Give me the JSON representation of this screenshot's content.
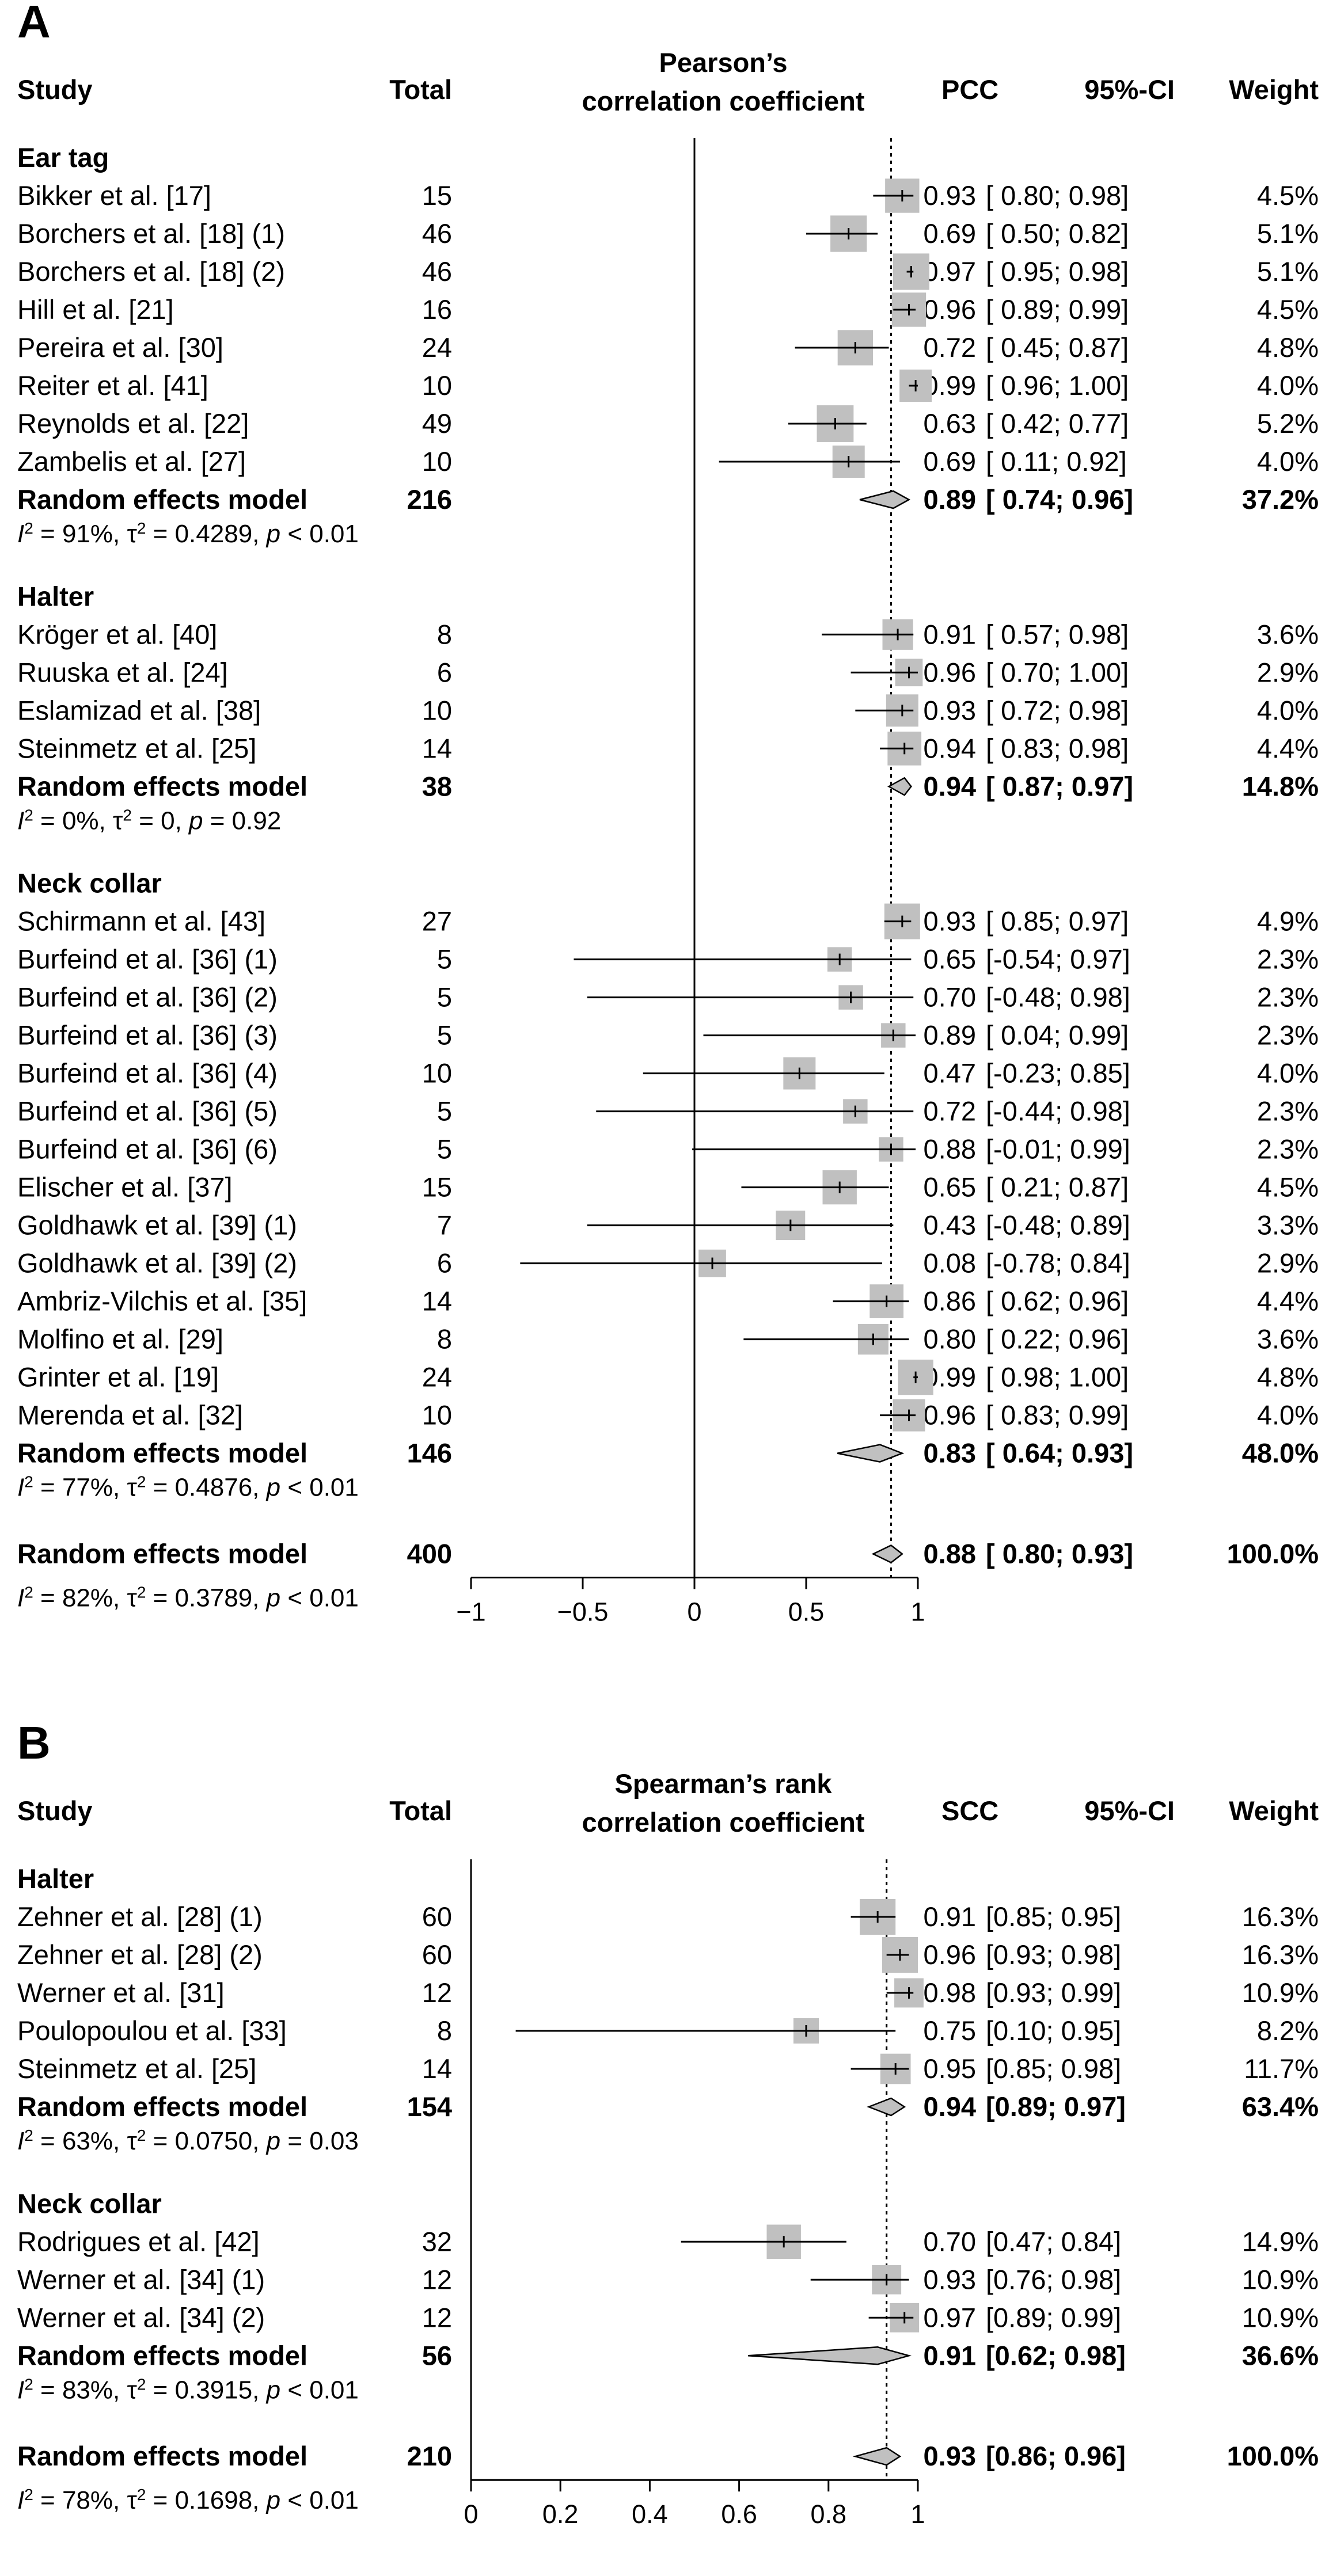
{
  "chart_data": [
    {
      "type": "forest",
      "panel_label": "A",
      "headers": {
        "study": "Study",
        "total": "Total",
        "plot_title_line1": "Pearson’s",
        "plot_title_line2": "correlation coefficient",
        "estimate": "PCC",
        "ci": "95%-CI",
        "weight": "Weight"
      },
      "xlim": [
        -1,
        1
      ],
      "xticks": [
        -1,
        -0.5,
        0,
        0.5,
        1
      ],
      "xtick_labels": [
        "−1",
        "−0.5",
        "0",
        "0.5",
        "1"
      ],
      "zero_line": 0,
      "overall_line": 0.88,
      "groups": [
        {
          "name": "Ear tag",
          "studies": [
            {
              "study": "Bikker et al. [17]",
              "total": "15",
              "est": 0.93,
              "lo": 0.8,
              "hi": 0.98,
              "est_text": "0.93",
              "ci_text": "[ 0.80; 0.98]",
              "weight": "4.5%",
              "w": 4.5
            },
            {
              "study": "Borchers et al. [18] (1)",
              "total": "46",
              "est": 0.69,
              "lo": 0.5,
              "hi": 0.82,
              "est_text": "0.69",
              "ci_text": "[ 0.50; 0.82]",
              "weight": "5.1%",
              "w": 5.1
            },
            {
              "study": "Borchers et al. [18] (2)",
              "total": "46",
              "est": 0.97,
              "lo": 0.95,
              "hi": 0.98,
              "est_text": "0.97",
              "ci_text": "[ 0.95; 0.98]",
              "weight": "5.1%",
              "w": 5.1
            },
            {
              "study": "Hill et al. [21]",
              "total": "16",
              "est": 0.96,
              "lo": 0.89,
              "hi": 0.99,
              "est_text": "0.96",
              "ci_text": "[ 0.89; 0.99]",
              "weight": "4.5%",
              "w": 4.5
            },
            {
              "study": "Pereira et al. [30]",
              "total": "24",
              "est": 0.72,
              "lo": 0.45,
              "hi": 0.87,
              "est_text": "0.72",
              "ci_text": "[ 0.45; 0.87]",
              "weight": "4.8%",
              "w": 4.8
            },
            {
              "study": "Reiter et al. [41]",
              "total": "10",
              "est": 0.99,
              "lo": 0.96,
              "hi": 1.0,
              "est_text": "0.99",
              "ci_text": "[ 0.96; 1.00]",
              "weight": "4.0%",
              "w": 4.0
            },
            {
              "study": "Reynolds et al. [22]",
              "total": "49",
              "est": 0.63,
              "lo": 0.42,
              "hi": 0.77,
              "est_text": "0.63",
              "ci_text": "[ 0.42; 0.77]",
              "weight": "5.2%",
              "w": 5.2
            },
            {
              "study": "Zambelis et al. [27]",
              "total": "10",
              "est": 0.69,
              "lo": 0.11,
              "hi": 0.92,
              "est_text": "0.69",
              "ci_text": "[ 0.11; 0.92]",
              "weight": "4.0%",
              "w": 4.0
            }
          ],
          "summary": {
            "label": "Random effects model",
            "total": "216",
            "est": 0.89,
            "lo": 0.74,
            "hi": 0.96,
            "est_text": "0.89",
            "ci_text": "[ 0.74; 0.96]",
            "weight": "37.2%"
          },
          "heterogeneity": {
            "i2": "91%",
            "tau2": "0.4289",
            "p": "< 0.01"
          }
        },
        {
          "name": "Halter",
          "studies": [
            {
              "study": "Kröger et al. [40]",
              "total": "8",
              "est": 0.91,
              "lo": 0.57,
              "hi": 0.98,
              "est_text": "0.91",
              "ci_text": "[ 0.57; 0.98]",
              "weight": "3.6%",
              "w": 3.6
            },
            {
              "study": "Ruuska et al. [24]",
              "total": "6",
              "est": 0.96,
              "lo": 0.7,
              "hi": 1.0,
              "est_text": "0.96",
              "ci_text": "[ 0.70; 1.00]",
              "weight": "2.9%",
              "w": 2.9
            },
            {
              "study": "Eslamizad et al. [38]",
              "total": "10",
              "est": 0.93,
              "lo": 0.72,
              "hi": 0.98,
              "est_text": "0.93",
              "ci_text": "[ 0.72; 0.98]",
              "weight": "4.0%",
              "w": 4.0
            },
            {
              "study": "Steinmetz et al. [25]",
              "total": "14",
              "est": 0.94,
              "lo": 0.83,
              "hi": 0.98,
              "est_text": "0.94",
              "ci_text": "[ 0.83; 0.98]",
              "weight": "4.4%",
              "w": 4.4
            }
          ],
          "summary": {
            "label": "Random effects model",
            "total": "38",
            "est": 0.94,
            "lo": 0.87,
            "hi": 0.97,
            "est_text": "0.94",
            "ci_text": "[ 0.87; 0.97]",
            "weight": "14.8%"
          },
          "heterogeneity": {
            "i2": "0%",
            "tau2": "0",
            "p": "= 0.92"
          }
        },
        {
          "name": "Neck collar",
          "studies": [
            {
              "study": "Schirmann et al. [43]",
              "total": "27",
              "est": 0.93,
              "lo": 0.85,
              "hi": 0.97,
              "est_text": "0.93",
              "ci_text": "[ 0.85; 0.97]",
              "weight": "4.9%",
              "w": 4.9
            },
            {
              "study": "Burfeind et al. [36] (1)",
              "total": "5",
              "est": 0.65,
              "lo": -0.54,
              "hi": 0.97,
              "est_text": "0.65",
              "ci_text": "[-0.54; 0.97]",
              "weight": "2.3%",
              "w": 2.3
            },
            {
              "study": "Burfeind et al. [36] (2)",
              "total": "5",
              "est": 0.7,
              "lo": -0.48,
              "hi": 0.98,
              "est_text": "0.70",
              "ci_text": "[-0.48; 0.98]",
              "weight": "2.3%",
              "w": 2.3
            },
            {
              "study": "Burfeind et al. [36] (3)",
              "total": "5",
              "est": 0.89,
              "lo": 0.04,
              "hi": 0.99,
              "est_text": "0.89",
              "ci_text": "[ 0.04; 0.99]",
              "weight": "2.3%",
              "w": 2.3
            },
            {
              "study": "Burfeind et al. [36] (4)",
              "total": "10",
              "est": 0.47,
              "lo": -0.23,
              "hi": 0.85,
              "est_text": "0.47",
              "ci_text": "[-0.23; 0.85]",
              "weight": "4.0%",
              "w": 4.0
            },
            {
              "study": "Burfeind et al. [36] (5)",
              "total": "5",
              "est": 0.72,
              "lo": -0.44,
              "hi": 0.98,
              "est_text": "0.72",
              "ci_text": "[-0.44; 0.98]",
              "weight": "2.3%",
              "w": 2.3
            },
            {
              "study": "Burfeind et al. [36] (6)",
              "total": "5",
              "est": 0.88,
              "lo": -0.01,
              "hi": 0.99,
              "est_text": "0.88",
              "ci_text": "[-0.01; 0.99]",
              "weight": "2.3%",
              "w": 2.3
            },
            {
              "study": "Elischer et al. [37]",
              "total": "15",
              "est": 0.65,
              "lo": 0.21,
              "hi": 0.87,
              "est_text": "0.65",
              "ci_text": "[ 0.21; 0.87]",
              "weight": "4.5%",
              "w": 4.5
            },
            {
              "study": "Goldhawk et al. [39] (1)",
              "total": "7",
              "est": 0.43,
              "lo": -0.48,
              "hi": 0.89,
              "est_text": "0.43",
              "ci_text": "[-0.48; 0.89]",
              "weight": "3.3%",
              "w": 3.3
            },
            {
              "study": "Goldhawk et al. [39] (2)",
              "total": "6",
              "est": 0.08,
              "lo": -0.78,
              "hi": 0.84,
              "est_text": "0.08",
              "ci_text": "[-0.78; 0.84]",
              "weight": "2.9%",
              "w": 2.9
            },
            {
              "study": "Ambriz-Vilchis et al. [35]",
              "total": "14",
              "est": 0.86,
              "lo": 0.62,
              "hi": 0.96,
              "est_text": "0.86",
              "ci_text": "[ 0.62; 0.96]",
              "weight": "4.4%",
              "w": 4.4
            },
            {
              "study": "Molfino et al. [29]",
              "total": "8",
              "est": 0.8,
              "lo": 0.22,
              "hi": 0.96,
              "est_text": "0.80",
              "ci_text": "[ 0.22; 0.96]",
              "weight": "3.6%",
              "w": 3.6
            },
            {
              "study": "Grinter et al. [19]",
              "total": "24",
              "est": 0.99,
              "lo": 0.98,
              "hi": 1.0,
              "est_text": "0.99",
              "ci_text": "[ 0.98; 1.00]",
              "weight": "4.8%",
              "w": 4.8
            },
            {
              "study": "Merenda et al. [32]",
              "total": "10",
              "est": 0.96,
              "lo": 0.83,
              "hi": 0.99,
              "est_text": "0.96",
              "ci_text": "[ 0.83; 0.99]",
              "weight": "4.0%",
              "w": 4.0
            }
          ],
          "summary": {
            "label": "Random effects model",
            "total": "146",
            "est": 0.83,
            "lo": 0.64,
            "hi": 0.93,
            "est_text": "0.83",
            "ci_text": "[ 0.64; 0.93]",
            "weight": "48.0%"
          },
          "heterogeneity": {
            "i2": "77%",
            "tau2": "0.4876",
            "p": "< 0.01"
          }
        }
      ],
      "overall": {
        "label": "Random effects model",
        "total": "400",
        "est": 0.88,
        "lo": 0.8,
        "hi": 0.93,
        "est_text": "0.88",
        "ci_text": "[ 0.80; 0.93]",
        "weight": "100.0%"
      },
      "overall_heterogeneity": {
        "i2": "82%",
        "tau2": "0.3789",
        "p": "< 0.01"
      }
    },
    {
      "type": "forest",
      "panel_label": "B",
      "headers": {
        "study": "Study",
        "total": "Total",
        "plot_title_line1": "Spearman’s rank",
        "plot_title_line2": "correlation coefficient",
        "estimate": "SCC",
        "ci": "95%-CI",
        "weight": "Weight"
      },
      "xlim": [
        0,
        1
      ],
      "xticks": [
        0,
        0.2,
        0.4,
        0.6,
        0.8,
        1
      ],
      "xtick_labels": [
        "0",
        "0.2",
        "0.4",
        "0.6",
        "0.8",
        "1"
      ],
      "zero_line": null,
      "overall_line": 0.93,
      "groups": [
        {
          "name": "Halter",
          "studies": [
            {
              "study": "Zehner et al. [28] (1)",
              "total": "60",
              "est": 0.91,
              "lo": 0.85,
              "hi": 0.95,
              "est_text": "0.91",
              "ci_text": "[0.85; 0.95]",
              "weight": "16.3%",
              "w": 16.3
            },
            {
              "study": "Zehner et al. [28] (2)",
              "total": "60",
              "est": 0.96,
              "lo": 0.93,
              "hi": 0.98,
              "est_text": "0.96",
              "ci_text": "[0.93; 0.98]",
              "weight": "16.3%",
              "w": 16.3
            },
            {
              "study": "Werner et al. [31]",
              "total": "12",
              "est": 0.98,
              "lo": 0.93,
              "hi": 0.99,
              "est_text": "0.98",
              "ci_text": "[0.93; 0.99]",
              "weight": "10.9%",
              "w": 10.9
            },
            {
              "study": "Poulopoulou et al. [33]",
              "total": "8",
              "est": 0.75,
              "lo": 0.1,
              "hi": 0.95,
              "est_text": "0.75",
              "ci_text": "[0.10; 0.95]",
              "weight": "8.2%",
              "w": 8.2
            },
            {
              "study": "Steinmetz et al. [25]",
              "total": "14",
              "est": 0.95,
              "lo": 0.85,
              "hi": 0.98,
              "est_text": "0.95",
              "ci_text": "[0.85; 0.98]",
              "weight": "11.7%",
              "w": 11.7
            }
          ],
          "summary": {
            "label": "Random effects model",
            "total": "154",
            "est": 0.94,
            "lo": 0.89,
            "hi": 0.97,
            "est_text": "0.94",
            "ci_text": "[0.89; 0.97]",
            "weight": "63.4%"
          },
          "heterogeneity": {
            "i2": "63%",
            "tau2": "0.0750",
            "p": "= 0.03"
          }
        },
        {
          "name": "Neck collar",
          "studies": [
            {
              "study": "Rodrigues et al. [42]",
              "total": "32",
              "est": 0.7,
              "lo": 0.47,
              "hi": 0.84,
              "est_text": "0.70",
              "ci_text": "[0.47; 0.84]",
              "weight": "14.9%",
              "w": 14.9
            },
            {
              "study": "Werner et al. [34] (1)",
              "total": "12",
              "est": 0.93,
              "lo": 0.76,
              "hi": 0.98,
              "est_text": "0.93",
              "ci_text": "[0.76; 0.98]",
              "weight": "10.9%",
              "w": 10.9
            },
            {
              "study": "Werner et al. [34] (2)",
              "total": "12",
              "est": 0.97,
              "lo": 0.89,
              "hi": 0.99,
              "est_text": "0.97",
              "ci_text": "[0.89; 0.99]",
              "weight": "10.9%",
              "w": 10.9
            }
          ],
          "summary": {
            "label": "Random effects model",
            "total": "56",
            "est": 0.91,
            "lo": 0.62,
            "hi": 0.98,
            "est_text": "0.91",
            "ci_text": "[0.62; 0.98]",
            "weight": "36.6%"
          },
          "heterogeneity": {
            "i2": "83%",
            "tau2": "0.3915",
            "p": "< 0.01"
          }
        }
      ],
      "overall": {
        "label": "Random effects model",
        "total": "210",
        "est": 0.93,
        "lo": 0.86,
        "hi": 0.96,
        "est_text": "0.93",
        "ci_text": "[0.86; 0.96]",
        "weight": "100.0%"
      },
      "overall_heterogeneity": {
        "i2": "78%",
        "tau2": "0.1698",
        "p": "< 0.01"
      }
    }
  ]
}
